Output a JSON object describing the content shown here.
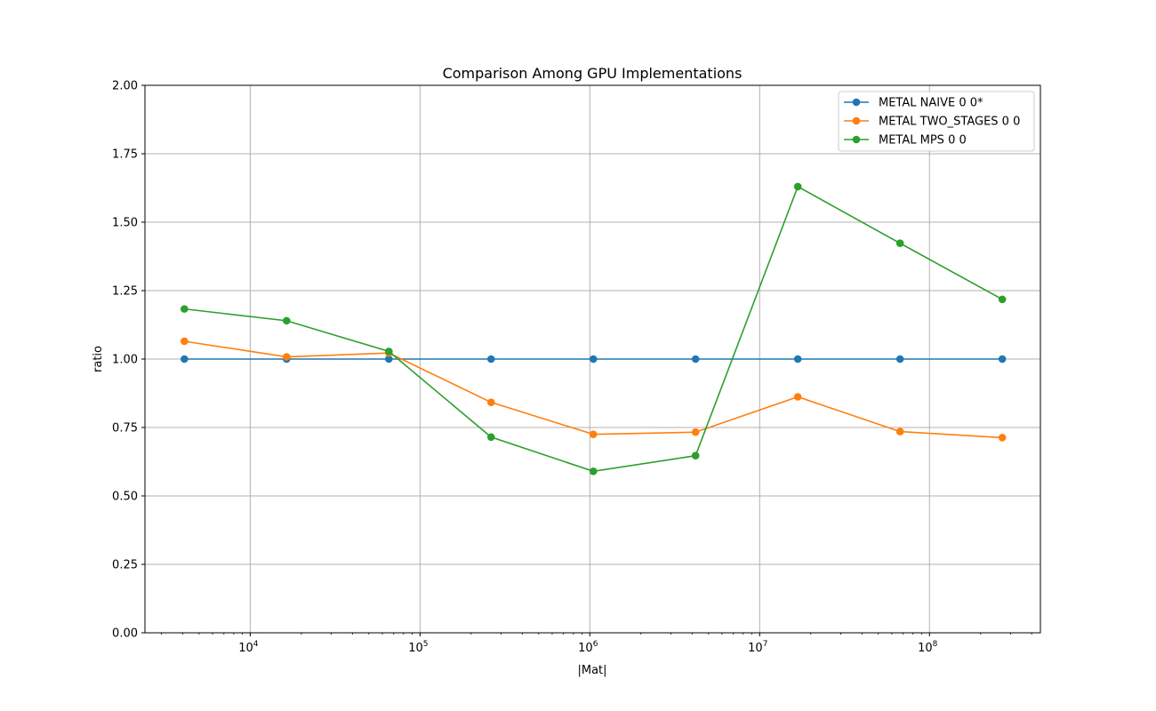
{
  "chart_data": {
    "type": "line",
    "title": "Comparison Among GPU Implementations",
    "xlabel": "|Mat|",
    "ylabel": "ratio",
    "xscale": "log",
    "xlim": [
      2400,
      450000000
    ],
    "ylim": [
      0,
      2.0
    ],
    "grid": true,
    "legend_position": "top-right",
    "x": [
      4096,
      16384,
      65536,
      262144,
      1048576,
      4194304,
      16777216,
      67108864,
      268435456
    ],
    "x_tick_labels": [
      {
        "base": "10",
        "exp": "4",
        "value": 10000
      },
      {
        "base": "10",
        "exp": "5",
        "value": 100000
      },
      {
        "base": "10",
        "exp": "6",
        "value": 1000000
      },
      {
        "base": "10",
        "exp": "7",
        "value": 10000000
      },
      {
        "base": "10",
        "exp": "8",
        "value": 100000000
      }
    ],
    "y_ticks": [
      "0.00",
      "0.25",
      "0.50",
      "0.75",
      "1.00",
      "1.25",
      "1.50",
      "1.75",
      "2.00"
    ],
    "series": [
      {
        "name": "METAL NAIVE 0 0*",
        "color": "#1f77b4",
        "values": [
          1.0,
          1.0,
          1.0,
          1.0,
          1.0,
          1.0,
          1.0,
          1.0,
          1.0
        ]
      },
      {
        "name": "METAL TWO_STAGES 0 0",
        "color": "#ff7f0e",
        "values": [
          1.065,
          1.008,
          1.022,
          0.842,
          0.725,
          0.733,
          0.862,
          0.735,
          0.713
        ]
      },
      {
        "name": "METAL MPS 0 0",
        "color": "#2ca02c",
        "values": [
          1.183,
          1.14,
          1.028,
          0.715,
          0.59,
          0.647,
          1.63,
          1.423,
          1.218
        ]
      }
    ]
  }
}
